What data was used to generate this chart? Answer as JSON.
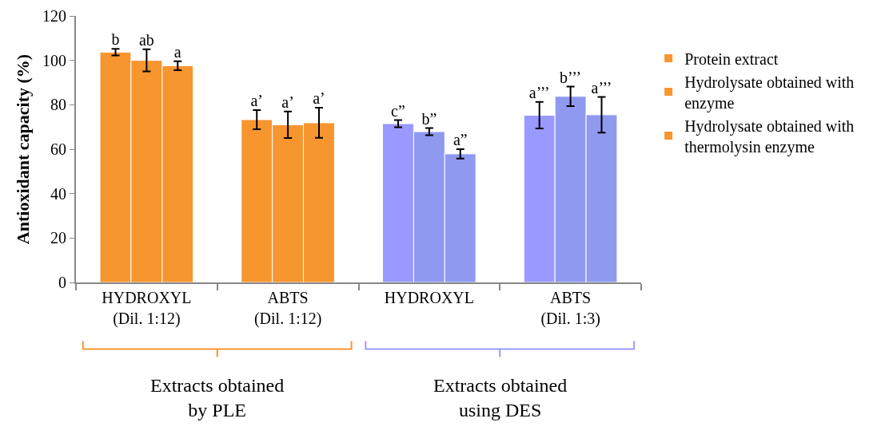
{
  "chart_data": {
    "type": "bar",
    "ylabel": "Antioxidant capacity (%)",
    "categories": [
      "HYDROXYL\n(Dil. 1:12)",
      "ABTS\n(Dil. 1:12)",
      "HYDROXYL",
      "ABTS\n(Dil. 1:3)"
    ],
    "series": [
      {
        "name": "Protein extract",
        "colors": [
          "#f7952f",
          "#f7952f",
          "#9999ff",
          "#9999ff"
        ],
        "values": [
          103.7,
          73.3,
          71.5,
          75.3
        ],
        "errors": [
          1.5,
          4.3,
          1.6,
          6
        ],
        "value_labels": [
          "b",
          "a’",
          "c”",
          "a’’’"
        ]
      },
      {
        "name": "Hydrolysate obtained with enzyme",
        "colors": [
          "#f7952f",
          "#f7952f",
          "#8f99f0",
          "#8f99f0"
        ],
        "values": [
          100,
          71,
          67.9,
          83.8
        ],
        "errors": [
          5,
          6,
          1.6,
          4.4
        ],
        "value_labels": [
          "ab",
          "a’",
          "b”",
          "b’’’"
        ]
      },
      {
        "name": "Hydrolysate obtained with thermolysin enzyme",
        "colors": [
          "#f7952f",
          "#f7952f",
          "#8f99f0",
          "#8f99f0"
        ],
        "values": [
          97.6,
          71.9,
          57.9,
          75.5
        ],
        "errors": [
          2,
          6.8,
          2.1,
          8
        ],
        "value_labels": [
          "a",
          "a’",
          "a”",
          "a’’’"
        ]
      }
    ],
    "annotations": [
      "Extracts obtained\nby PLE",
      "Extracts obtained\nusing DES"
    ],
    "ylim": [
      0,
      120
    ],
    "yticks": [
      0,
      20,
      40,
      60,
      80,
      100,
      120
    ],
    "grid": false,
    "legend": "right"
  }
}
